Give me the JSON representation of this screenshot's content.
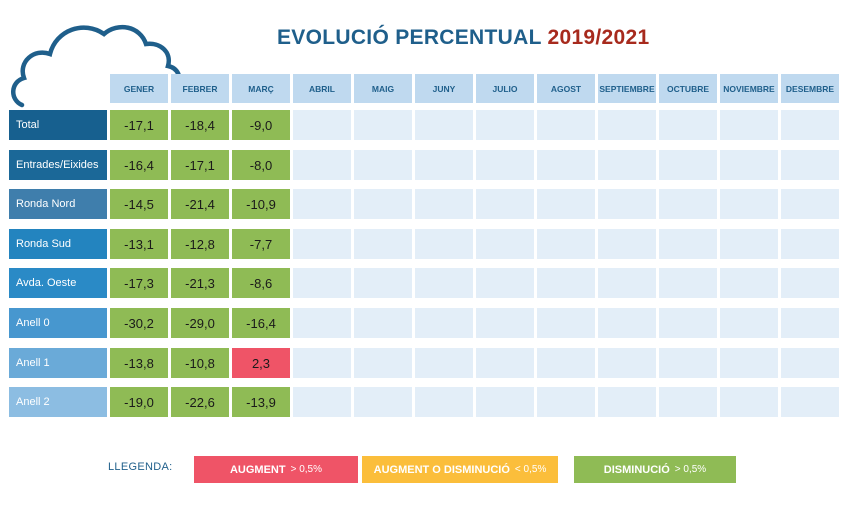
{
  "title": {
    "main": "EVOLUCIÓ PERCENTUAL",
    "year": "2019/2021"
  },
  "colors": {
    "header_bg": "#bfd9ef",
    "header_text": "#1f5f8b",
    "empty_cell": "#e3eef8",
    "decrease": "#8fbb55",
    "increase": "#ef5467",
    "mixed": "#fbbe3b",
    "title_main": "#1f5f8b",
    "title_year": "#a72a1d"
  },
  "chart_data": {
    "type": "table",
    "title": "EVOLUCIÓ PERCENTUAL 2019/2021",
    "columns": [
      "GENER",
      "FEBRER",
      "MARÇ",
      "ABRIL",
      "MAIG",
      "JUNY",
      "JULIO",
      "AGOST",
      "SEPTIEMBRE",
      "OCTUBRE",
      "NOVIEMBRE",
      "DESEMBRE"
    ],
    "rows": [
      {
        "label": "Total",
        "color": "#17608f",
        "values": [
          "-17,1",
          "-18,4",
          "-9,0"
        ],
        "status": [
          "decrease",
          "decrease",
          "decrease"
        ]
      },
      {
        "label": "Entrades/Eixides",
        "color": "#1b6898",
        "values": [
          "-16,4",
          "-17,1",
          "-8,0"
        ],
        "status": [
          "decrease",
          "decrease",
          "decrease"
        ]
      },
      {
        "label": "Ronda Nord",
        "color": "#3f7eac",
        "values": [
          "-14,5",
          "-21,4",
          "-10,9"
        ],
        "status": [
          "decrease",
          "decrease",
          "decrease"
        ]
      },
      {
        "label": "Ronda Sud",
        "color": "#2384bf",
        "values": [
          "-13,1",
          "-12,8",
          "-7,7"
        ],
        "status": [
          "decrease",
          "decrease",
          "decrease"
        ]
      },
      {
        "label": "Avda. Oeste",
        "color": "#2a8ac6",
        "values": [
          "-17,3",
          "-21,3",
          "-8,6"
        ],
        "status": [
          "decrease",
          "decrease",
          "decrease"
        ]
      },
      {
        "label": "Anell 0",
        "color": "#4797cf",
        "values": [
          "-30,2",
          "-29,0",
          "-16,4"
        ],
        "status": [
          "decrease",
          "decrease",
          "decrease"
        ]
      },
      {
        "label": "Anell 1",
        "color": "#6aaad8",
        "values": [
          "-13,8",
          "-10,8",
          "2,3"
        ],
        "status": [
          "decrease",
          "decrease",
          "increase"
        ]
      },
      {
        "label": "Anell 2",
        "color": "#8cbde2",
        "values": [
          "-19,0",
          "-22,6",
          "-13,9"
        ],
        "status": [
          "decrease",
          "decrease",
          "decrease"
        ]
      }
    ]
  },
  "legend": {
    "label": "LLEGENDA:",
    "items": [
      {
        "text": "AUGMENT",
        "condition": "> 0,5%",
        "color": "#ef5467"
      },
      {
        "text": "AUGMENT O DISMINUCIÓ",
        "condition": "< 0,5%",
        "color": "#fbbe3b"
      },
      {
        "text": "DISMINUCIÓ",
        "condition": "> 0,5%",
        "color": "#8fbb55"
      }
    ]
  }
}
